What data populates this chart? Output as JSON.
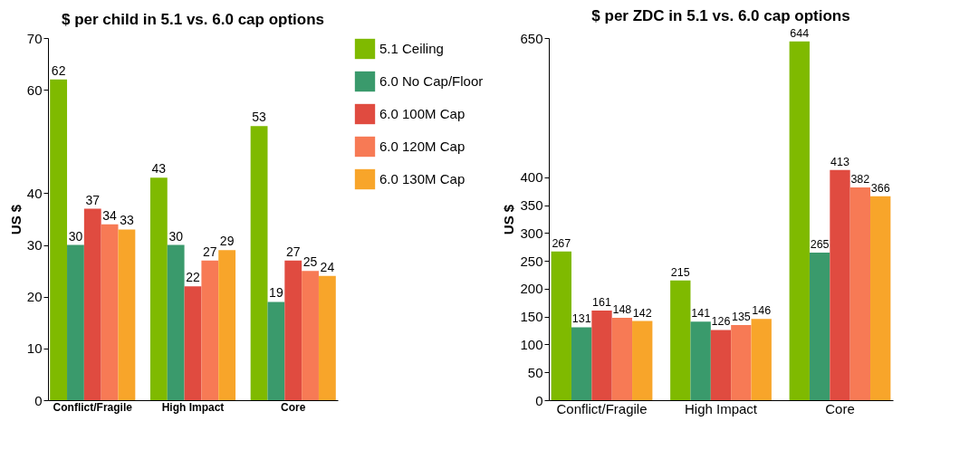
{
  "chart_data": [
    {
      "type": "bar",
      "title": "$ per child in 5.1 vs. 6.0 cap options",
      "ylabel": "US $",
      "categories": [
        "Conflict/Fragile",
        "High Impact",
        "Core"
      ],
      "series": [
        {
          "name": "5.1 Ceiling",
          "color": "#7fba00",
          "values": [
            62,
            43,
            53
          ]
        },
        {
          "name": "6.0 No Cap/Floor",
          "color": "#3a9a6c",
          "values": [
            30,
            30,
            19
          ]
        },
        {
          "name": "6.0 100M Cap",
          "color": "#e04b40",
          "values": [
            37,
            22,
            27
          ]
        },
        {
          "name": "6.0 120M Cap",
          "color": "#f77a55",
          "values": [
            34,
            27,
            25
          ]
        },
        {
          "name": "6.0 130M Cap",
          "color": "#f8a52a",
          "values": [
            33,
            29,
            24
          ]
        }
      ],
      "ylim": [
        0,
        70
      ],
      "yticks": [
        0,
        10,
        20,
        30,
        40,
        60,
        70
      ],
      "data_labels": true,
      "legend": "right",
      "grid": false
    },
    {
      "type": "bar",
      "title": "$ per ZDC in 5.1 vs. 6.0 cap options",
      "ylabel": "US $",
      "categories": [
        "Conflict/Fragile",
        "High Impact",
        "Core"
      ],
      "series": [
        {
          "color": "#7fba00",
          "values": [
            267,
            215,
            644
          ]
        },
        {
          "color": "#3a9a6c",
          "values": [
            131,
            141,
            265
          ]
        },
        {
          "color": "#e04b40",
          "values": [
            161,
            126,
            413
          ]
        },
        {
          "color": "#f77a55",
          "values": [
            148,
            135,
            382
          ]
        },
        {
          "color": "#f8a52a",
          "values": [
            142,
            146,
            366
          ]
        }
      ],
      "ylim": [
        0,
        650
      ],
      "yticks": [
        0,
        50,
        100,
        150,
        200,
        250,
        300,
        350,
        400,
        650
      ],
      "data_labels": true,
      "legend": false,
      "grid": false
    }
  ]
}
